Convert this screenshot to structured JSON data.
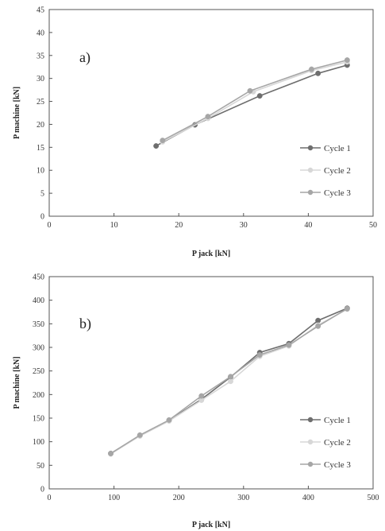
{
  "colors": {
    "cycle1": "#6e6e6e",
    "cycle2": "#d7d7d7",
    "cycle3": "#a6a6a6",
    "axis": "#555555"
  },
  "chart_data": [
    {
      "type": "line",
      "panel_label": "a)",
      "xlabel": "P jack [kN]",
      "ylabel": "P machine [kN]",
      "xlim": [
        0,
        50
      ],
      "ylim": [
        0,
        45
      ],
      "xticks": [
        0,
        10,
        20,
        30,
        40,
        50
      ],
      "yticks": [
        0,
        5,
        10,
        15,
        20,
        25,
        30,
        35,
        40,
        45
      ],
      "legend_position": "bottom-right",
      "series": [
        {
          "name": "Cycle 1",
          "color_key": "cycle1",
          "marker": "circle",
          "points": [
            [
              16.5,
              15.3
            ],
            [
              22.5,
              19.9
            ],
            [
              32.5,
              26.2
            ],
            [
              41.5,
              31.1
            ],
            [
              46.0,
              32.9
            ]
          ]
        },
        {
          "name": "Cycle 2",
          "color_key": "cycle2",
          "marker": "circle",
          "points": [
            [
              17.5,
              16.2
            ],
            [
              24.5,
              21.3
            ],
            [
              31.5,
              27.1
            ],
            [
              40.5,
              31.7
            ],
            [
              46.0,
              33.6
            ]
          ]
        },
        {
          "name": "Cycle 3",
          "color_key": "cycle3",
          "marker": "circle",
          "points": [
            [
              17.5,
              16.5
            ],
            [
              24.5,
              21.7
            ],
            [
              31.0,
              27.3
            ],
            [
              40.5,
              32.0
            ],
            [
              46.0,
              34.0
            ]
          ]
        }
      ]
    },
    {
      "type": "line",
      "panel_label": "b)",
      "xlabel": "P jack [kN]",
      "ylabel": "P machine [kN]",
      "xlim": [
        0,
        500
      ],
      "ylim": [
        0,
        450
      ],
      "xticks": [
        0,
        100,
        200,
        300,
        400,
        500
      ],
      "yticks": [
        0,
        50,
        100,
        150,
        200,
        250,
        300,
        350,
        400,
        450
      ],
      "legend_position": "bottom-right",
      "series": [
        {
          "name": "Cycle 1",
          "color_key": "cycle1",
          "marker": "circle",
          "points": [
            [
              95,
              75
            ],
            [
              140,
              113
            ],
            [
              185,
              145
            ],
            [
              235,
              190
            ],
            [
              280,
              237
            ],
            [
              325,
              289
            ],
            [
              370,
              308
            ],
            [
              415,
              357
            ],
            [
              460,
              383
            ]
          ]
        },
        {
          "name": "Cycle 2",
          "color_key": "cycle2",
          "marker": "circle",
          "points": [
            [
              95,
              74
            ],
            [
              140,
              112
            ],
            [
              185,
              144
            ],
            [
              235,
              188
            ],
            [
              280,
              228
            ],
            [
              325,
              281
            ],
            [
              370,
              303
            ],
            [
              415,
              347
            ],
            [
              460,
              381
            ]
          ]
        },
        {
          "name": "Cycle 3",
          "color_key": "cycle3",
          "marker": "circle",
          "points": [
            [
              95,
              75
            ],
            [
              140,
              114
            ],
            [
              185,
              146
            ],
            [
              235,
              197
            ],
            [
              280,
              238
            ],
            [
              325,
              284
            ],
            [
              370,
              305
            ],
            [
              415,
              345
            ],
            [
              460,
              382
            ]
          ]
        }
      ]
    }
  ]
}
